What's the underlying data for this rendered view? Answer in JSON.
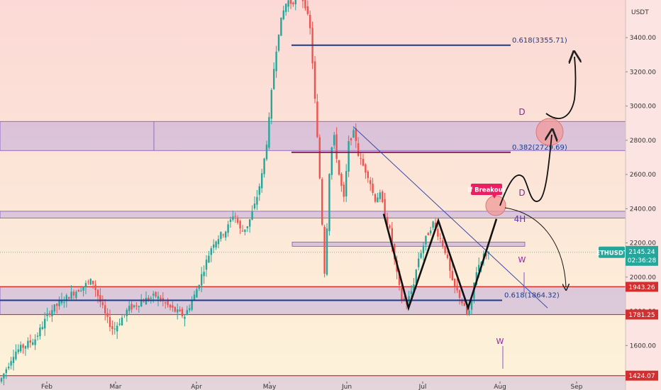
{
  "chart_data": {
    "type": "candlestick",
    "symbol_label": "ETHUSDT",
    "axis_unit": "USDT",
    "current_price": "2145.24",
    "countdown": "02:36:28",
    "y_ticks": [
      1600,
      1800,
      2000,
      2200,
      2400,
      2600,
      2800,
      3000,
      3200,
      3400
    ],
    "y_tick_labels": [
      "1600.00",
      "1800.00",
      "2000.00",
      "2200.00",
      "2400.00",
      "2600.00",
      "2800.00",
      "3000.00",
      "3200.00",
      "3400.00"
    ],
    "ylim": [
      1340,
      3620
    ],
    "x_ticks": [
      "Feb",
      "Mar",
      "Apr",
      "May",
      "Jun",
      "Jul",
      "Aug",
      "Sep"
    ],
    "price_tags": [
      {
        "label": "1943.26",
        "color": "#d32f2f"
      },
      {
        "label": "1781.25",
        "color": "#d32f2f"
      },
      {
        "label": "1424.07",
        "color": "#d32f2f"
      }
    ],
    "fib_levels": [
      {
        "label": "0.618(3355.71)",
        "value": 3355.71,
        "color": "#1a3c8f"
      },
      {
        "label": "0.382(2729.69)",
        "value": 2729.69,
        "color": "#7b1e4f"
      },
      {
        "label": "0.618(1864.32)",
        "value": 1864.32,
        "color": "#1a3c8f"
      }
    ],
    "zones": [
      {
        "top": 2910,
        "bottom": 2740
      },
      {
        "top": 2385,
        "bottom": 2345
      },
      {
        "top": 1945,
        "bottom": 1781
      }
    ],
    "annotations": {
      "d_upper": "D",
      "d_lower": "D",
      "w_right": "W",
      "w_bottom": "W",
      "tf_label": "4H",
      "breakout_label": "If Breakout"
    },
    "colors": {
      "up": "#26a69a",
      "down": "#ef5350",
      "zone": "#b39ddb",
      "fib_blue": "#1a3c8f",
      "fib_maroon": "#7b1e4f",
      "tag_red": "#d32f2f",
      "symbol_tag": "#26a69a"
    }
  }
}
